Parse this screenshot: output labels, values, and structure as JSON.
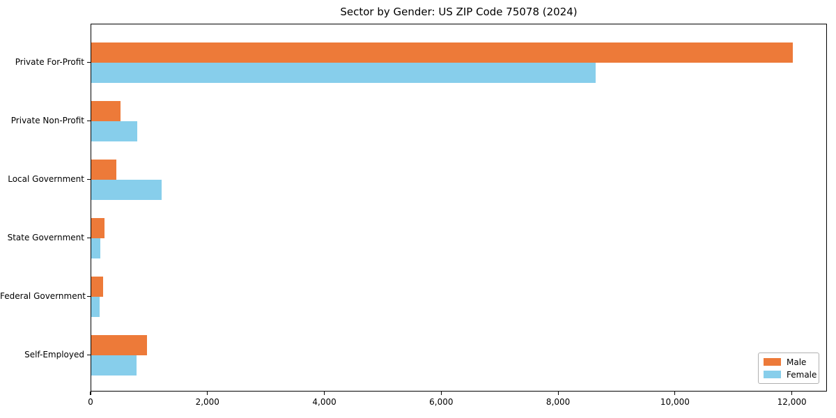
{
  "chart_data": {
    "type": "bar",
    "orientation": "horizontal",
    "title": "Sector by Gender: US ZIP Code 75078 (2024)",
    "categories": [
      "Private For-Profit",
      "Private Non-Profit",
      "Local Government",
      "State Government",
      "Federal Government",
      "Self-Employed"
    ],
    "series": [
      {
        "name": "Male",
        "color": "#ed7a39",
        "values": [
          12000,
          500,
          430,
          230,
          200,
          950
        ]
      },
      {
        "name": "Female",
        "color": "#87ceeb",
        "values": [
          8630,
          790,
          1200,
          150,
          140,
          770
        ]
      }
    ],
    "xlabel": "",
    "ylabel": "",
    "xlim": [
      0,
      12600
    ],
    "xticks": [
      0,
      2000,
      4000,
      6000,
      8000,
      10000,
      12000
    ],
    "xtick_labels": [
      "0",
      "2,000",
      "4,000",
      "6,000",
      "8,000",
      "10,000",
      "12,000"
    ],
    "grid": false,
    "legend": {
      "position": "lower right",
      "entries": [
        {
          "label": "Male",
          "color": "#ed7a39"
        },
        {
          "label": "Female",
          "color": "#87ceeb"
        }
      ]
    },
    "colors": {
      "axis": "#000000",
      "background": "#ffffff",
      "legend_border": "#b0b0b0"
    }
  }
}
